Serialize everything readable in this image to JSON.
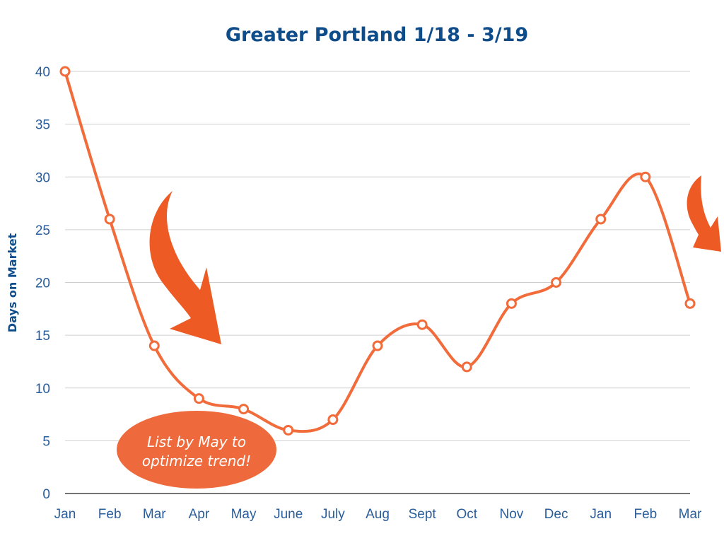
{
  "chart_data": {
    "type": "line",
    "title": "Greater Portland 1/18 - 3/19",
    "xlabel": "",
    "ylabel": "Days on Market",
    "categories": [
      "Jan",
      "Feb",
      "Mar",
      "Apr",
      "May",
      "June",
      "July",
      "Aug",
      "Sept",
      "Oct",
      "Nov",
      "Dec",
      "Jan",
      "Feb",
      "Mar"
    ],
    "series": [
      {
        "values": [
          40,
          26,
          14,
          9,
          8,
          6,
          7,
          14,
          16,
          12,
          18,
          20,
          26,
          30,
          18
        ]
      }
    ],
    "ylim": [
      0,
      40
    ],
    "yticks": [
      0,
      5,
      10,
      15,
      20,
      25,
      30,
      35,
      40
    ],
    "grid": true,
    "legend": "none",
    "colors": {
      "series": "#f26b3a",
      "arrow": "#ee5a24",
      "callout": "#ee6a3c",
      "title": "#0f4c8a",
      "ticks": "#2a5d9b"
    },
    "annotations": {
      "callout_lines": [
        "List by May to",
        "optimize trend!"
      ]
    }
  }
}
